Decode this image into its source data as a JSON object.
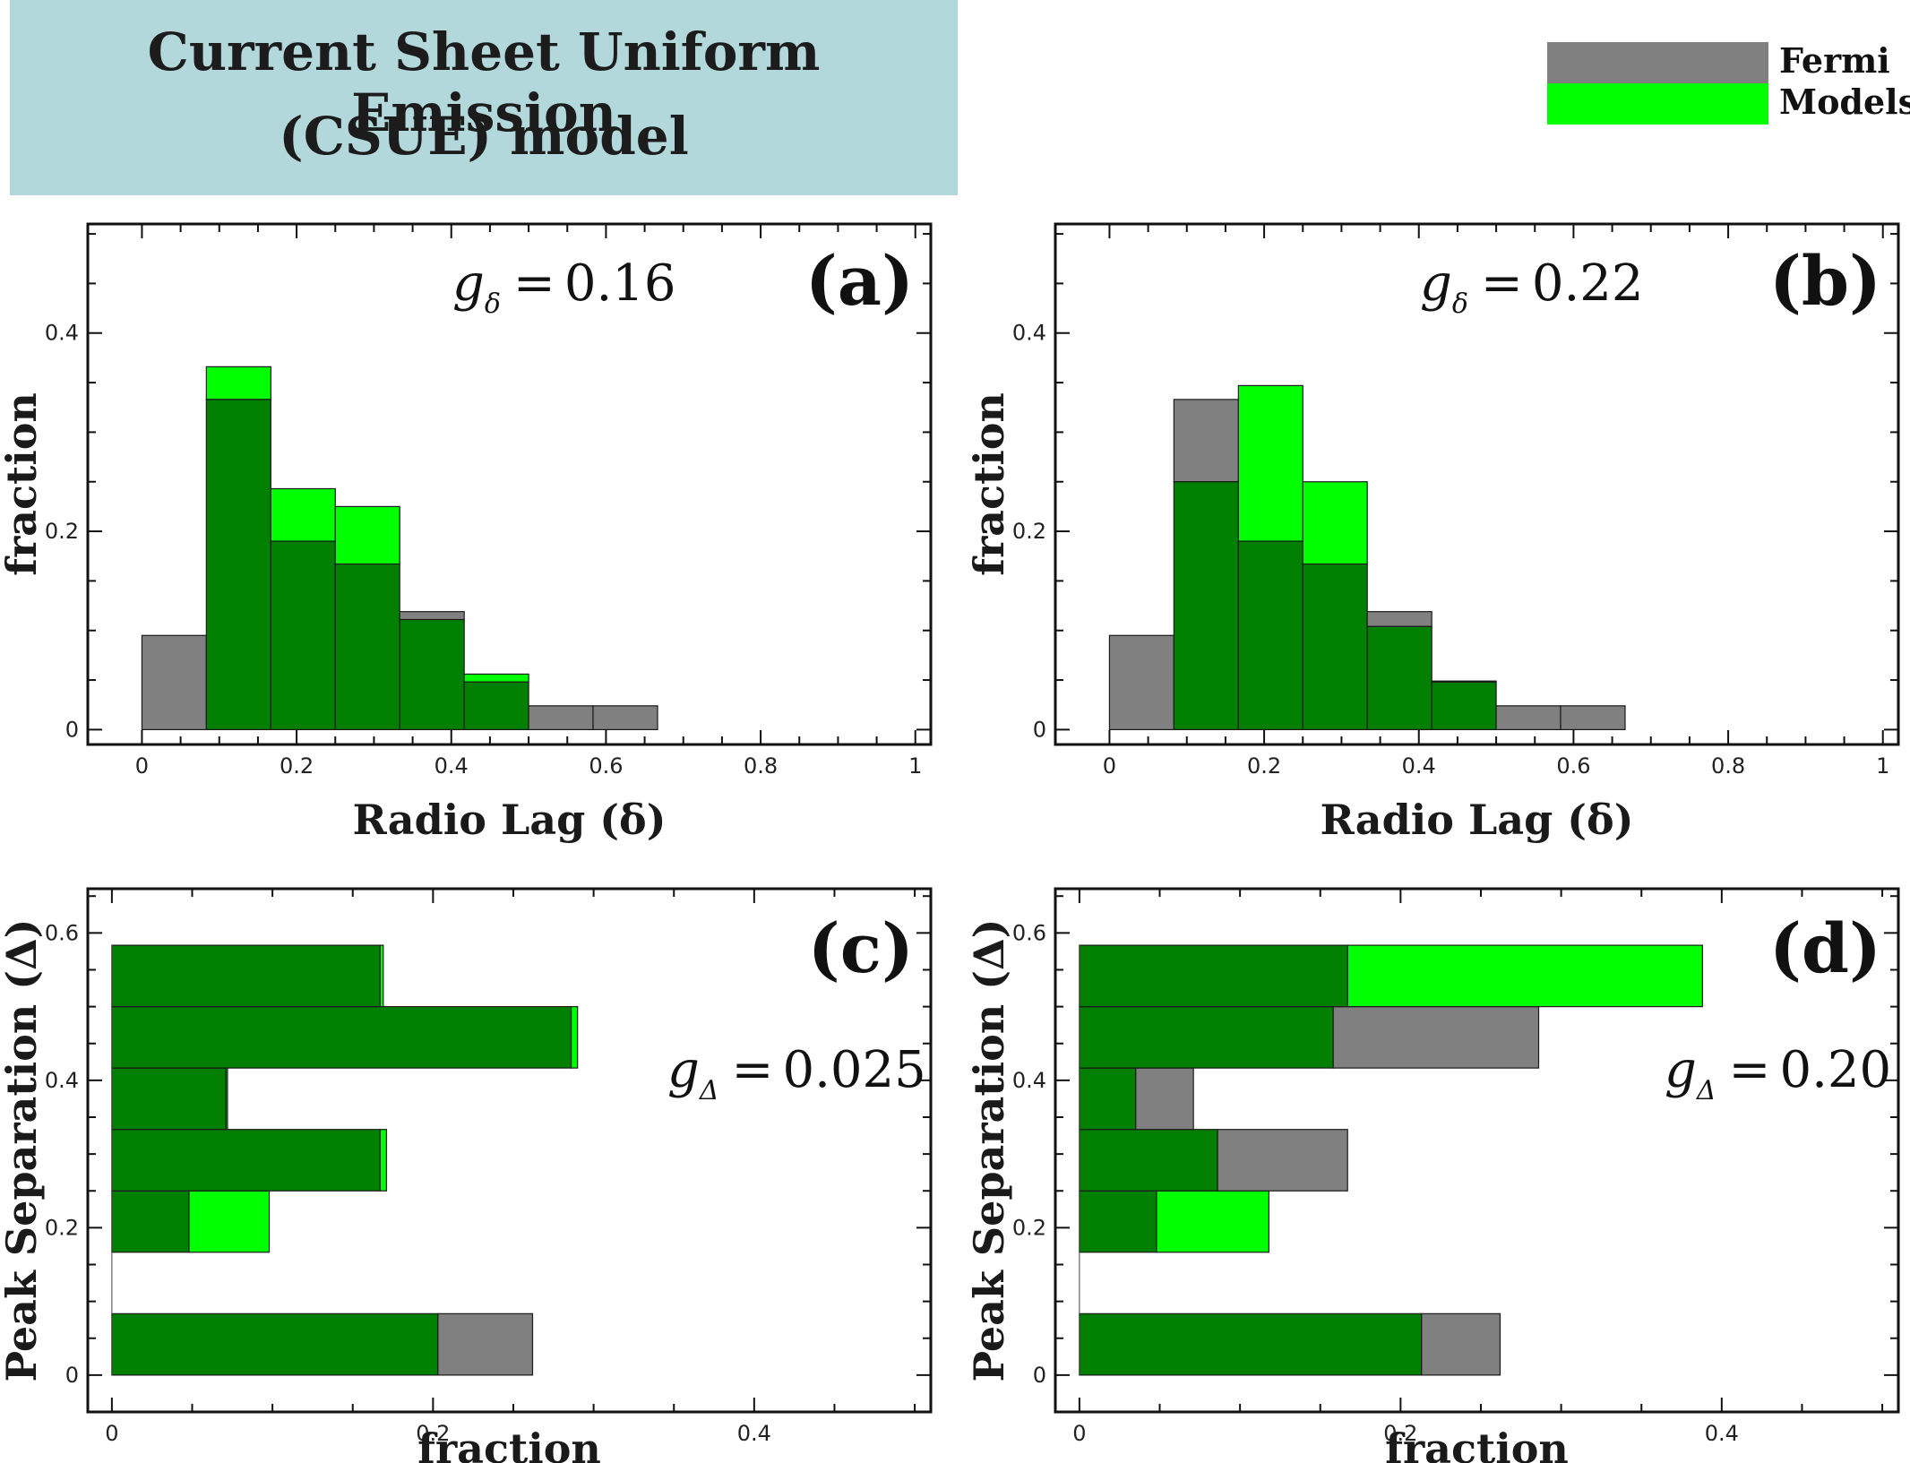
{
  "title": {
    "line1": "Current Sheet Uniform Emission",
    "line2": "(CSUE) model"
  },
  "legend": [
    {
      "label": "Fermi",
      "color": "#808080"
    },
    {
      "label": "Models",
      "color": "#00ff00"
    }
  ],
  "colors": {
    "fermi": "#808080",
    "models": "#00ff00",
    "overlap": "#007f00"
  },
  "chart_data": [
    {
      "type": "bar",
      "orientation": "vertical",
      "tag": "(a)",
      "stat_symbol": "g",
      "stat_subscript": "δ",
      "stat_value": "0.16",
      "xlabel": "Radio Lag (δ)",
      "ylabel": "fraction",
      "xlim": [
        -0.07,
        1.02
      ],
      "ylim": [
        -0.015,
        0.51
      ],
      "xticks": [
        "0",
        "0.2",
        "0.4",
        "0.6",
        "0.8",
        "1"
      ],
      "yticks": [
        "0",
        "0.2",
        "0.4"
      ],
      "bin_edges": [
        0,
        0.0833,
        0.1667,
        0.25,
        0.3333,
        0.4167,
        0.5,
        0.5833,
        0.6667
      ],
      "series": [
        {
          "name": "Fermi",
          "values": [
            0.095,
            0.333,
            0.19,
            0.167,
            0.119,
            0.048,
            0.024,
            0.024
          ]
        },
        {
          "name": "Models",
          "values": [
            0.0,
            0.366,
            0.243,
            0.225,
            0.111,
            0.056,
            0.0,
            0.0
          ]
        }
      ]
    },
    {
      "type": "bar",
      "orientation": "vertical",
      "tag": "(b)",
      "stat_symbol": "g",
      "stat_subscript": "δ",
      "stat_value": "0.22",
      "xlabel": "Radio Lag (δ)",
      "ylabel": "fraction",
      "xlim": [
        -0.07,
        1.02
      ],
      "ylim": [
        -0.015,
        0.51
      ],
      "xticks": [
        "0",
        "0.2",
        "0.4",
        "0.6",
        "0.8",
        "1"
      ],
      "yticks": [
        "0",
        "0.2",
        "0.4"
      ],
      "bin_edges": [
        0,
        0.0833,
        0.1667,
        0.25,
        0.3333,
        0.4167,
        0.5,
        0.5833,
        0.6667
      ],
      "series": [
        {
          "name": "Fermi",
          "values": [
            0.095,
            0.333,
            0.19,
            0.167,
            0.119,
            0.048,
            0.024,
            0.024
          ]
        },
        {
          "name": "Models",
          "values": [
            0.0,
            0.25,
            0.347,
            0.25,
            0.104,
            0.049,
            0.0,
            0.0
          ]
        }
      ]
    },
    {
      "type": "bar",
      "orientation": "horizontal",
      "tag": "(c)",
      "stat_symbol": "g",
      "stat_subscript": "Δ",
      "stat_value": "0.025",
      "xlabel": "fraction",
      "ylabel": "Peak Separation (Δ)",
      "xlim": [
        -0.015,
        0.51
      ],
      "ylim": [
        -0.05,
        0.66
      ],
      "xticks": [
        "0",
        "0.2",
        "0.4"
      ],
      "yticks": [
        "0",
        "0.2",
        "0.4",
        "0.6"
      ],
      "bin_edges": [
        0,
        0.0833,
        0.1667,
        0.25,
        0.3333,
        0.4167,
        0.5,
        0.5833
      ],
      "series": [
        {
          "name": "Fermi",
          "values": [
            0.262,
            0.0,
            0.048,
            0.167,
            0.071,
            0.286,
            0.167
          ]
        },
        {
          "name": "Models",
          "values": [
            0.203,
            0.0,
            0.098,
            0.171,
            0.072,
            0.29,
            0.169
          ]
        }
      ]
    },
    {
      "type": "bar",
      "orientation": "horizontal",
      "tag": "(d)",
      "stat_symbol": "g",
      "stat_subscript": "Δ",
      "stat_value": "0.20",
      "xlabel": "fraction",
      "ylabel": "Peak Separation (Δ)",
      "xlim": [
        -0.015,
        0.51
      ],
      "ylim": [
        -0.05,
        0.66
      ],
      "xticks": [
        "0",
        "0.2",
        "0.4"
      ],
      "yticks": [
        "0",
        "0.2",
        "0.4",
        "0.6"
      ],
      "bin_edges": [
        0,
        0.0833,
        0.1667,
        0.25,
        0.3333,
        0.4167,
        0.5,
        0.5833
      ],
      "series": [
        {
          "name": "Fermi",
          "values": [
            0.262,
            0.0,
            0.048,
            0.167,
            0.071,
            0.286,
            0.167
          ]
        },
        {
          "name": "Models",
          "values": [
            0.213,
            0.0,
            0.118,
            0.086,
            0.035,
            0.158,
            0.388
          ]
        }
      ]
    }
  ]
}
